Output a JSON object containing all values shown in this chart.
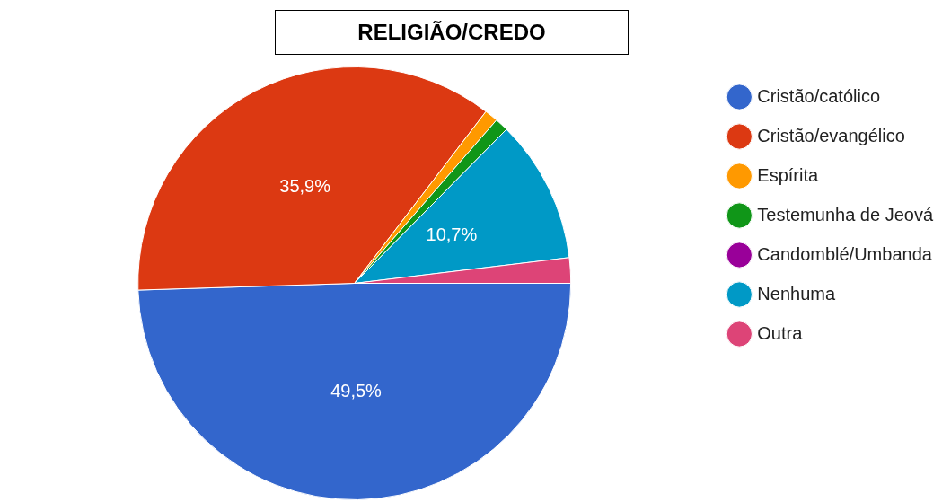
{
  "chart_data": {
    "type": "pie",
    "title": "RELIGIÃO/CREDO",
    "categories": [
      "Cristão/católico",
      "Cristão/evangélico",
      "Espírita",
      "Testemunha de Jeová",
      "Candomblé/Umbanda",
      "Nenhuma",
      "Outra"
    ],
    "values": [
      49.5,
      35.9,
      1,
      1,
      0,
      10.7,
      1.9
    ],
    "colors": [
      "#3366cc",
      "#dc3912",
      "#ff9900",
      "#109618",
      "#990099",
      "#0099c6",
      "#dd4477"
    ],
    "value_labels": [
      "49,5%",
      "35,9%",
      null,
      null,
      null,
      "10,7%",
      null
    ],
    "legend": "right"
  }
}
